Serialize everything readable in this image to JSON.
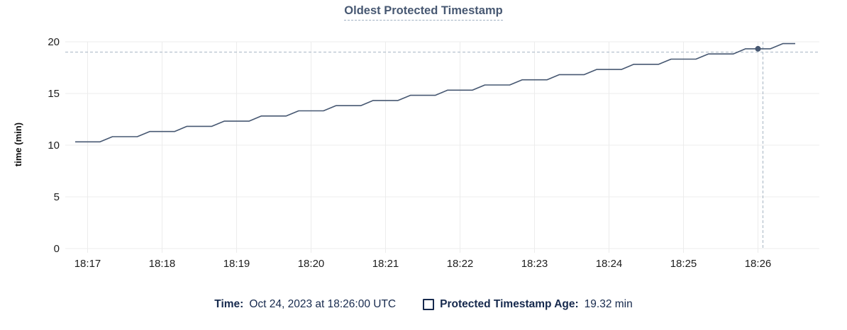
{
  "colors": {
    "line": "#475872",
    "title": "#475872",
    "legend_text": "#16294d",
    "grid": "#ececec",
    "crosshair": "#a5b4c2",
    "axis_text": "#1d1d1d"
  },
  "legend": {
    "time_label": "Time:",
    "time_value": "Oct 24, 2023 at 18:26:00 UTC",
    "series_marker": "square-outline-icon",
    "series_label": "Protected Timestamp Age:",
    "series_value": "19.32 min"
  },
  "chart_data": {
    "type": "line",
    "title": "Oldest Protected Timestamp",
    "xlabel": "",
    "ylabel": "time (min)",
    "ylim": [
      0,
      20
    ],
    "yticks": [
      0,
      5,
      10,
      15,
      20
    ],
    "xticks": [
      "18:17",
      "18:18",
      "18:19",
      "18:20",
      "18:21",
      "18:22",
      "18:23",
      "18:24",
      "18:25",
      "18:26"
    ],
    "grid": true,
    "legend_position": "bottom-center",
    "series": [
      {
        "name": "Protected Timestamp Age",
        "unit": "min",
        "start_time": "18:16:50",
        "interval_seconds": 10,
        "values": [
          10.32,
          10.32,
          10.32,
          10.82,
          10.82,
          10.82,
          11.32,
          11.32,
          11.32,
          11.82,
          11.82,
          11.82,
          12.32,
          12.32,
          12.32,
          12.82,
          12.82,
          12.82,
          13.32,
          13.32,
          13.32,
          13.82,
          13.82,
          13.82,
          14.32,
          14.32,
          14.32,
          14.82,
          14.82,
          14.82,
          15.32,
          15.32,
          15.32,
          15.82,
          15.82,
          15.82,
          16.32,
          16.32,
          16.32,
          16.82,
          16.82,
          16.82,
          17.32,
          17.32,
          17.32,
          17.82,
          17.82,
          17.82,
          18.32,
          18.32,
          18.32,
          18.82,
          18.82,
          18.82,
          19.32,
          19.32,
          19.32,
          19.82,
          19.82
        ]
      }
    ],
    "highlight": {
      "time": "18:26:00",
      "value": 19.32,
      "time_label": "Oct 24, 2023 at 18:26:00 UTC"
    },
    "crosshair": {
      "time": "18:26:04",
      "value": 19.0
    }
  }
}
